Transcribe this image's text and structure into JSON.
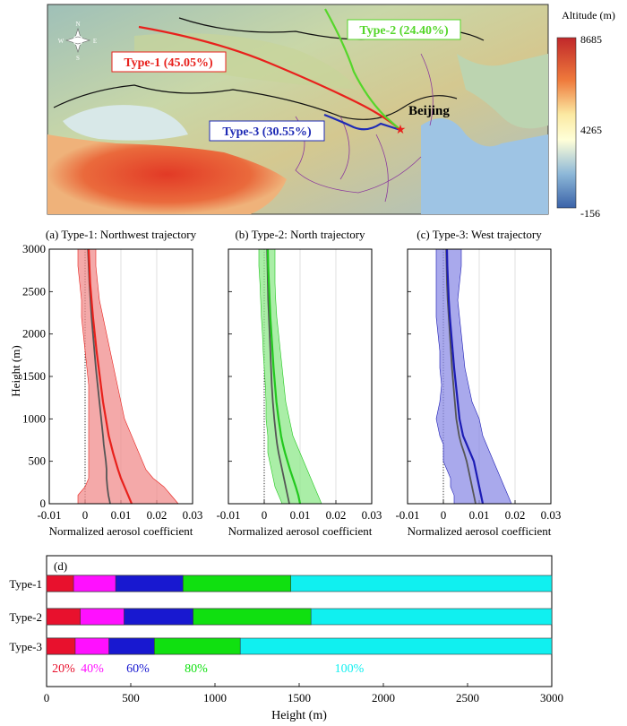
{
  "map": {
    "colorbar_title": "Altitude (m)",
    "colorbar_labels": [
      "8685",
      "4265",
      "-156"
    ],
    "city": "Beijing",
    "compass": {
      "n": "N",
      "s": "S",
      "w": "W",
      "e": "E"
    },
    "routes": [
      {
        "label": "Type-1 (45.05%)",
        "color": "#e8211c"
      },
      {
        "label": "Type-2 (24.40%)",
        "color": "#55d62a"
      },
      {
        "label": "Type-3 (30.55%)",
        "color": "#1f2bb5"
      }
    ]
  },
  "chart_data": [
    {
      "type": "line",
      "title": "(a) Type-1: Northwest trajectory",
      "xlabel": "Normalized aerosol coefficient",
      "ylabel": "Height (m)",
      "xlim": [
        -0.01,
        0.03
      ],
      "ylim": [
        0,
        3000
      ],
      "xticks": [
        "-0.01",
        "0",
        "0.01",
        "0.02",
        "0.03"
      ],
      "yticks": [
        "0",
        "500",
        "1000",
        "1500",
        "2000",
        "2500",
        "3000"
      ],
      "color": "#e8211c",
      "fill": "#f08c8c",
      "series": {
        "height": [
          0,
          100,
          200,
          300,
          400,
          500,
          600,
          700,
          800,
          1000,
          1200,
          1400,
          1600,
          1800,
          2000,
          2200,
          2400,
          2600,
          2800,
          3000
        ],
        "mean": [
          0.013,
          0.012,
          0.011,
          0.01,
          0.0092,
          0.0085,
          0.0078,
          0.0072,
          0.0066,
          0.0058,
          0.005,
          0.0044,
          0.0038,
          0.0032,
          0.0027,
          0.0022,
          0.0018,
          0.0014,
          0.0012,
          0.001
        ],
        "median": [
          0.007,
          0.0065,
          0.0062,
          0.006,
          0.006,
          0.0058,
          0.0055,
          0.0052,
          0.005,
          0.0045,
          0.004,
          0.0035,
          0.003,
          0.0026,
          0.0022,
          0.0018,
          0.0015,
          0.0012,
          0.001,
          0.0008
        ],
        "low": [
          -0.002,
          -0.002,
          0.0,
          0.001,
          0.001,
          0.001,
          0.001,
          0.001,
          0.001,
          0.001,
          0.001,
          0.001,
          0.0005,
          0.0,
          -0.0005,
          -0.001,
          -0.001,
          -0.0015,
          -0.002,
          -0.002
        ],
        "high": [
          0.026,
          0.024,
          0.022,
          0.019,
          0.017,
          0.016,
          0.015,
          0.014,
          0.013,
          0.011,
          0.01,
          0.009,
          0.008,
          0.007,
          0.006,
          0.005,
          0.004,
          0.0035,
          0.003,
          0.003
        ]
      }
    },
    {
      "type": "line",
      "title": "(b) Type-2: North trajectory",
      "xlabel": "Normalized aerosol coefficient",
      "ylabel": "",
      "xlim": [
        -0.01,
        0.03
      ],
      "ylim": [
        0,
        3000
      ],
      "xticks": [
        "-0.01",
        "0",
        "0.01",
        "0.02",
        "0.03"
      ],
      "yticks": [],
      "color": "#22c81e",
      "fill": "#8ee88a",
      "series": {
        "height": [
          0,
          100,
          200,
          300,
          400,
          500,
          600,
          700,
          800,
          1000,
          1200,
          1400,
          1600,
          1800,
          2000,
          2200,
          2400,
          2600,
          2800,
          3000
        ],
        "mean": [
          0.01,
          0.0095,
          0.0088,
          0.008,
          0.0072,
          0.0065,
          0.0058,
          0.0052,
          0.0047,
          0.004,
          0.0034,
          0.003,
          0.0026,
          0.0023,
          0.002,
          0.0017,
          0.0015,
          0.0013,
          0.0011,
          0.001
        ],
        "median": [
          0.007,
          0.0065,
          0.006,
          0.0055,
          0.005,
          0.0045,
          0.004,
          0.0036,
          0.0033,
          0.0028,
          0.0024,
          0.0021,
          0.0019,
          0.0017,
          0.0015,
          0.0013,
          0.0011,
          0.001,
          0.0009,
          0.0008
        ],
        "low": [
          0.005,
          0.004,
          0.003,
          0.0025,
          0.002,
          0.0015,
          0.001,
          0.001,
          0.001,
          0.0005,
          0.0005,
          0.0003,
          0.0,
          -0.0003,
          -0.0005,
          -0.0008,
          -0.001,
          -0.0012,
          -0.0015,
          -0.0015
        ],
        "high": [
          0.016,
          0.015,
          0.014,
          0.013,
          0.012,
          0.011,
          0.01,
          0.009,
          0.008,
          0.007,
          0.006,
          0.0055,
          0.005,
          0.0045,
          0.004,
          0.0035,
          0.0032,
          0.003,
          0.003,
          0.003
        ]
      }
    },
    {
      "type": "line",
      "title": "(c) Type-3: West trajectory",
      "xlabel": "Normalized aerosol coefficient",
      "ylabel": "",
      "xlim": [
        -0.01,
        0.03
      ],
      "ylim": [
        0,
        3000
      ],
      "xticks": [
        "-0.01",
        "0",
        "0.01",
        "0.02",
        "0.03"
      ],
      "yticks": [],
      "color": "#1c1cb4",
      "fill": "#8c8ce6",
      "series": {
        "height": [
          0,
          100,
          200,
          300,
          400,
          500,
          600,
          700,
          800,
          1000,
          1200,
          1400,
          1600,
          1800,
          2000,
          2200,
          2400,
          2600,
          2800,
          3000
        ],
        "mean": [
          0.011,
          0.0105,
          0.01,
          0.0095,
          0.009,
          0.0085,
          0.0075,
          0.0065,
          0.0055,
          0.0045,
          0.004,
          0.0035,
          0.003,
          0.0026,
          0.0022,
          0.0018,
          0.0015,
          0.0013,
          0.0011,
          0.001
        ],
        "median": [
          0.009,
          0.0085,
          0.008,
          0.0075,
          0.007,
          0.0065,
          0.0058,
          0.005,
          0.0044,
          0.0036,
          0.0032,
          0.0028,
          0.0024,
          0.0021,
          0.0018,
          0.0015,
          0.0012,
          0.001,
          0.0009,
          0.0008
        ],
        "low": [
          0.003,
          0.003,
          0.002,
          0.002,
          0.001,
          0.0,
          0.0,
          0.0,
          -0.001,
          -0.002,
          -0.001,
          -0.0005,
          -0.001,
          -0.001,
          -0.0015,
          -0.002,
          -0.002,
          -0.002,
          -0.002,
          -0.002
        ],
        "high": [
          0.019,
          0.018,
          0.017,
          0.016,
          0.015,
          0.014,
          0.013,
          0.012,
          0.011,
          0.01,
          0.008,
          0.007,
          0.006,
          0.0055,
          0.005,
          0.0045,
          0.004,
          0.0045,
          0.005,
          0.005
        ]
      }
    },
    {
      "type": "bar",
      "title": "(d)",
      "xlabel": "Height (m)",
      "xlim": [
        0,
        3000
      ],
      "xticks": [
        "0",
        "500",
        "1000",
        "1500",
        "2000",
        "2500",
        "3000"
      ],
      "categories": [
        "Type-1",
        "Type-2",
        "Type-3"
      ],
      "percent_labels": [
        {
          "label": "20%",
          "color": "#e8112d"
        },
        {
          "label": "40%",
          "color": "#ff10ff"
        },
        {
          "label": "60%",
          "color": "#1818d0"
        },
        {
          "label": "80%",
          "color": "#10e010"
        },
        {
          "label": "100%",
          "color": "#10f0f0"
        }
      ],
      "series": [
        {
          "name": "20%",
          "color": "#e8112d",
          "values": [
            160,
            200,
            170
          ]
        },
        {
          "name": "40%",
          "color": "#ff10ff",
          "values": [
            410,
            460,
            370
          ]
        },
        {
          "name": "60%",
          "color": "#1818d0",
          "values": [
            810,
            870,
            640
          ]
        },
        {
          "name": "80%",
          "color": "#10e010",
          "values": [
            1450,
            1570,
            1150
          ]
        },
        {
          "name": "100%",
          "color": "#10f0f0",
          "values": [
            3000,
            3000,
            3000
          ]
        }
      ]
    }
  ]
}
